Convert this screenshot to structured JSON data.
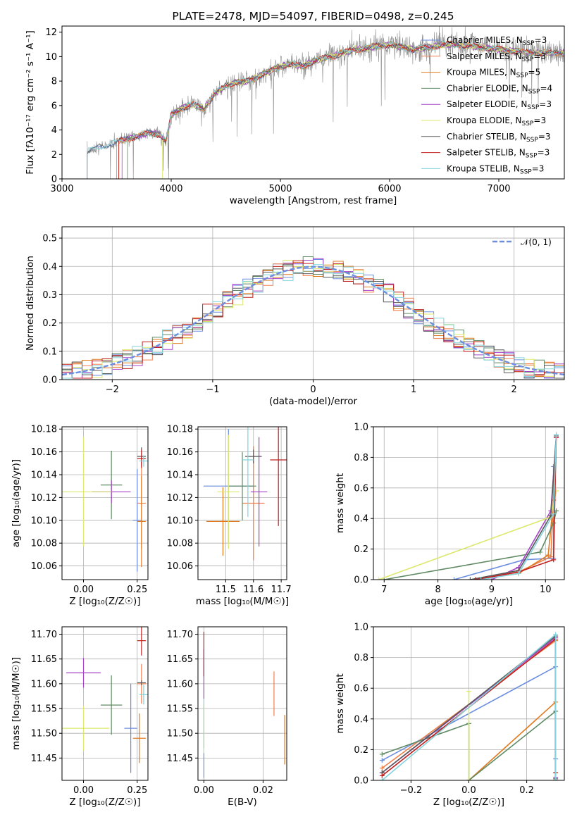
{
  "colors": [
    "#6c8ee0",
    "#f07e4a",
    "#e07b20",
    "#5f8a63",
    "#a642c6",
    "#dde86e",
    "#5a5a5a",
    "#c01f1f",
    "#82d3dc"
  ],
  "chart_data": [
    {
      "id": "spectrum",
      "type": "line",
      "title": "PLATE=2478, MJD=54097, FIBERID=0498, z=0.245",
      "xlabel": "wavelength [Angstrom, rest frame]",
      "ylabel": "Flux [fλ10⁻¹⁷ erg cm⁻² s⁻¹ A⁻¹]",
      "xlim": [
        3000,
        7600
      ],
      "ylim": [
        0,
        12.5
      ],
      "xticks": [
        "3000",
        "4000",
        "5000",
        "6000",
        "7000"
      ],
      "yticks": [
        "0",
        "2",
        "4",
        "6",
        "8",
        "10",
        "12"
      ],
      "legend_position": "top-right",
      "series": [
        {
          "name": "Chabrier MILES, N_SSP=3"
        },
        {
          "name": "Salpeter MILES, N_SSP=3"
        },
        {
          "name": "Kroupa MILES, N_SSP=5"
        },
        {
          "name": "Chabrier ELODIE, N_SSP=4"
        },
        {
          "name": "Salpeter ELODIE, N_SSP=3"
        },
        {
          "name": "Kroupa ELODIE, N_SSP=3"
        },
        {
          "name": "Chabrier STELIB, N_SSP=3"
        },
        {
          "name": "Salpeter STELIB, N_SSP=3"
        },
        {
          "name": "Kroupa STELIB, N_SSP=3"
        }
      ],
      "continuum_x": [
        3230,
        3300,
        3400,
        3500,
        3600,
        3700,
        3800,
        3900,
        3950,
        4000,
        4100,
        4200,
        4300,
        4400,
        4500,
        4600,
        4700,
        4800,
        4900,
        5000,
        5100,
        5200,
        5300,
        5400,
        5500,
        5600,
        5700,
        5800,
        5900,
        6000,
        6100,
        6200,
        6300,
        6400,
        6500,
        6600,
        6700,
        6800,
        6900,
        7000,
        7100,
        7200,
        7300
      ],
      "continuum_y": [
        2.2,
        2.5,
        2.7,
        3.0,
        3.3,
        3.5,
        3.8,
        3.6,
        3.0,
        5.2,
        5.8,
        6.1,
        5.7,
        7.0,
        7.6,
        7.9,
        8.0,
        8.4,
        8.8,
        9.2,
        9.4,
        9.2,
        9.6,
        9.9,
        10.1,
        10.4,
        10.6,
        10.7,
        10.9,
        11.0,
        10.8,
        10.6,
        10.7,
        10.8,
        11.0,
        11.0,
        10.9,
        10.8,
        10.7,
        10.6,
        10.5,
        10.4,
        10.3
      ],
      "model_start_x": [
        3230,
        3500,
        3520,
        3600,
        3550,
        3920,
        3230,
        3520,
        3230
      ]
    },
    {
      "id": "residuals",
      "type": "histogram",
      "xlabel": "(data-model)/error",
      "ylabel": "Normed distribution",
      "xlim": [
        -2.5,
        2.5
      ],
      "ylim": [
        0,
        0.54
      ],
      "xticks": [
        "−2",
        "−1",
        "0",
        "1",
        "2"
      ],
      "yticks": [
        "0.0",
        "0.1",
        "0.2",
        "0.3",
        "0.4",
        "0.5"
      ],
      "reference": {
        "name": "𝒩(0, 1)",
        "mean": 0,
        "sigma": 1,
        "color": "#6c8ee0"
      },
      "legend_position": "top-right",
      "bin_width": 0.1
    },
    {
      "id": "age_vs_Z",
      "type": "scatter",
      "xlabel": "Z [log₁₀(Z/Z☉)]",
      "ylabel": "age  [log₁₀(age/yr)]",
      "xlim": [
        -0.1,
        0.3
      ],
      "ylim": [
        10.048,
        10.182
      ],
      "xticks": [
        "0.00",
        "0.25"
      ],
      "yticks": [
        "10.06",
        "10.08",
        "10.10",
        "10.12",
        "10.14",
        "10.16",
        "10.18"
      ],
      "points": [
        {
          "x": 0.25,
          "y": 10.1,
          "xerr": 0.02,
          "yerr": 0.045,
          "c": 0
        },
        {
          "x": 0.27,
          "y": 10.115,
          "xerr": 0.02,
          "yerr": 0.04,
          "c": 1
        },
        {
          "x": 0.27,
          "y": 10.099,
          "xerr": 0.02,
          "yerr": 0.04,
          "c": 2
        },
        {
          "x": 0.13,
          "y": 10.131,
          "xerr": 0.05,
          "yerr": 0.03,
          "c": 3
        },
        {
          "x": 0.13,
          "y": 10.125,
          "xerr": 0.09,
          "yerr": 0.01,
          "c": 4
        },
        {
          "x": 0.0,
          "y": 10.125,
          "xerr": 0.13,
          "yerr": 0.048,
          "c": 5
        },
        {
          "x": 0.27,
          "y": 10.156,
          "xerr": 0.02,
          "yerr": 0.008,
          "c": 6
        },
        {
          "x": 0.27,
          "y": 10.154,
          "xerr": 0.02,
          "yerr": 0.008,
          "c": 7
        },
        {
          "x": 0.28,
          "y": 10.152,
          "xerr": 0.02,
          "yerr": 0.005,
          "c": 8
        }
      ]
    },
    {
      "id": "age_vs_mass",
      "type": "scatter",
      "xlabel": "mass [log₁₀(M/M☉)]",
      "ylabel": "",
      "xlim": [
        11.4,
        11.72
      ],
      "ylim": [
        10.048,
        10.182
      ],
      "xticks": [
        "11.5",
        "11.6",
        "11.7"
      ],
      "yticks": [
        "10.06",
        "10.08",
        "10.10",
        "10.12",
        "10.14",
        "10.16",
        "10.18"
      ],
      "points": [
        {
          "x": 11.51,
          "y": 10.13,
          "xerr": 0.09,
          "yerr": 0.05,
          "c": 0
        },
        {
          "x": 11.6,
          "y": 10.115,
          "xerr": 0.04,
          "yerr": 0.05,
          "c": 1
        },
        {
          "x": 11.49,
          "y": 10.099,
          "xerr": 0.06,
          "yerr": 0.03,
          "c": 2
        },
        {
          "x": 11.56,
          "y": 10.13,
          "xerr": 0.05,
          "yerr": 0.03,
          "c": 3
        },
        {
          "x": 11.62,
          "y": 10.125,
          "xerr": 0.03,
          "yerr": 0.048,
          "c": 4
        },
        {
          "x": 11.51,
          "y": 10.125,
          "xerr": 0.04,
          "yerr": 0.05,
          "c": 5
        },
        {
          "x": 11.6,
          "y": 10.156,
          "xerr": 0.03,
          "yerr": 0.006,
          "c": 6
        },
        {
          "x": 11.69,
          "y": 10.153,
          "xerr": 0.03,
          "yerr": 0.058,
          "c": 7
        },
        {
          "x": 11.58,
          "y": 10.153,
          "xerr": 0.02,
          "yerr": 0.05,
          "c": 8
        }
      ]
    },
    {
      "id": "weight_vs_age",
      "type": "line",
      "xlabel": "age  [log₁₀(age/yr)]",
      "ylabel": "mass weight",
      "xlim": [
        6.8,
        10.35
      ],
      "ylim": [
        0,
        1.0
      ],
      "xticks": [
        "7",
        "8",
        "9",
        "10"
      ],
      "yticks": [
        "0.0",
        "0.2",
        "0.4",
        "0.6",
        "0.8",
        "1.0"
      ],
      "series": [
        {
          "c": 0,
          "x": [
            8.3,
            9.6,
            10.15,
            10.15
          ],
          "y": [
            0.0,
            0.13,
            0.14,
            0.74
          ]
        },
        {
          "c": 1,
          "x": [
            8.7,
            9.5,
            10.1,
            10.2
          ],
          "y": [
            0.0,
            0.05,
            0.15,
            0.93
          ]
        },
        {
          "c": 2,
          "x": [
            8.7,
            9.5,
            10.05,
            10.15
          ],
          "y": [
            0.0,
            0.04,
            0.16,
            0.52
          ]
        },
        {
          "c": 3,
          "x": [
            7.0,
            9.9,
            10.15,
            10.2
          ],
          "y": [
            0.0,
            0.18,
            0.37,
            0.45
          ]
        },
        {
          "c": 4,
          "x": [
            9.0,
            9.5,
            10.1,
            10.2
          ],
          "y": [
            0.0,
            0.08,
            0.45,
            0.93
          ]
        },
        {
          "c": 5,
          "x": [
            6.9,
            10.1,
            10.2
          ],
          "y": [
            0.0,
            0.41,
            0.58
          ]
        },
        {
          "c": 6,
          "x": [
            8.6,
            9.5,
            10.1,
            10.2
          ],
          "y": [
            0.0,
            0.06,
            0.42,
            0.94
          ]
        },
        {
          "c": 7,
          "x": [
            8.7,
            9.5,
            10.15,
            10.2
          ],
          "y": [
            0.0,
            0.05,
            0.13,
            0.93
          ]
        },
        {
          "c": 8,
          "x": [
            8.8,
            9.5,
            10.15,
            10.2
          ],
          "y": [
            0.0,
            0.04,
            0.43,
            0.95
          ]
        }
      ]
    },
    {
      "id": "mass_vs_Z",
      "type": "scatter",
      "xlabel": "Z [log₁₀(Z/Z☉)]",
      "ylabel": "mass [log₁₀(M/M☉)]",
      "xlim": [
        -0.1,
        0.3
      ],
      "ylim": [
        11.405,
        11.715
      ],
      "xticks": [
        "0.00",
        "0.25"
      ],
      "yticks": [
        "11.45",
        "11.50",
        "11.55",
        "11.60",
        "11.65",
        "11.70"
      ],
      "points": [
        {
          "x": 0.22,
          "y": 11.51,
          "xerr": 0.03,
          "yerr": 0.09,
          "c": 0
        },
        {
          "x": 0.27,
          "y": 11.6,
          "xerr": 0.02,
          "yerr": 0.04,
          "c": 1
        },
        {
          "x": 0.26,
          "y": 11.49,
          "xerr": 0.03,
          "yerr": 0.05,
          "c": 2
        },
        {
          "x": 0.13,
          "y": 11.557,
          "xerr": 0.05,
          "yerr": 0.06,
          "c": 3
        },
        {
          "x": 0.0,
          "y": 11.622,
          "xerr": 0.08,
          "yerr": 0.03,
          "c": 4
        },
        {
          "x": 0.0,
          "y": 11.51,
          "xerr": 0.12,
          "yerr": 0.045,
          "c": 5
        },
        {
          "x": 0.27,
          "y": 11.602,
          "xerr": 0.02,
          "yerr": 0.005,
          "c": 6
        },
        {
          "x": 0.27,
          "y": 11.687,
          "xerr": 0.02,
          "yerr": 0.03,
          "c": 7
        },
        {
          "x": 0.28,
          "y": 11.578,
          "xerr": 0.02,
          "yerr": 0.02,
          "c": 8
        }
      ]
    },
    {
      "id": "mass_vs_EBV",
      "type": "scatter",
      "xlabel": "E(B-V)",
      "ylabel": "",
      "xlim": [
        -0.002,
        0.028
      ],
      "ylim": [
        11.405,
        11.715
      ],
      "xticks": [
        "0.00",
        "0.02"
      ],
      "yticks": [
        "11.45",
        "11.50",
        "11.55",
        "11.60",
        "11.65",
        "11.70"
      ],
      "points": [
        {
          "x": 0.0,
          "y": 11.44,
          "xerr": 0,
          "yerr": 0.03,
          "c": 0
        },
        {
          "x": 0.0273,
          "y": 11.487,
          "xerr": 0,
          "yerr": 0.05,
          "c": 2
        },
        {
          "x": 0.0237,
          "y": 11.58,
          "xerr": 0,
          "yerr": 0.045,
          "c": 1
        },
        {
          "x": 0.0,
          "y": 11.51,
          "xerr": 0,
          "yerr": 0.05,
          "c": 5
        },
        {
          "x": 0.0,
          "y": 11.52,
          "xerr": 0,
          "yerr": 0.05,
          "c": 8
        },
        {
          "x": 0.0,
          "y": 11.62,
          "xerr": 0,
          "yerr": 0.05,
          "c": 4
        },
        {
          "x": 0.0,
          "y": 11.66,
          "xerr": 0,
          "yerr": 0.045,
          "c": 7
        }
      ]
    },
    {
      "id": "weight_vs_Z",
      "type": "line",
      "xlabel": "Z [log₁₀(Z/Z☉)]",
      "ylabel": "mass weight",
      "xlim": [
        -0.33,
        0.33
      ],
      "ylim": [
        0,
        1.0
      ],
      "xticks": [
        "−0.2",
        "0.0",
        "0.2"
      ],
      "yticks": [
        "0.0",
        "0.2",
        "0.4",
        "0.6",
        "0.8",
        "1.0"
      ],
      "series": [
        {
          "c": 0,
          "x": [
            -0.3,
            0.3,
            0.3
          ],
          "y": [
            0.13,
            0.74,
            0.14
          ]
        },
        {
          "c": 1,
          "x": [
            -0.3,
            0.3,
            0.3
          ],
          "y": [
            0.08,
            0.91,
            0.0
          ]
        },
        {
          "c": 2,
          "x": [
            0.0,
            0.3,
            0.3
          ],
          "y": [
            0.0,
            0.51,
            0.0
          ]
        },
        {
          "c": 3,
          "x": [
            -0.3,
            0.0,
            0.0,
            0.3,
            0.3
          ],
          "y": [
            0.17,
            0.37,
            0.0,
            0.45,
            0.0
          ]
        },
        {
          "c": 4,
          "x": [
            -0.3,
            0.3,
            0.3
          ],
          "y": [
            0.05,
            0.93,
            0.02
          ]
        },
        {
          "c": 5,
          "x": [
            0.0,
            0.0
          ],
          "y": [
            0.0,
            0.58
          ]
        },
        {
          "c": 6,
          "x": [
            -0.3,
            0.3,
            0.3
          ],
          "y": [
            0.05,
            0.94,
            0.01
          ]
        },
        {
          "c": 7,
          "x": [
            -0.3,
            0.3,
            0.3
          ],
          "y": [
            0.03,
            0.92,
            0.05
          ]
        },
        {
          "c": 8,
          "x": [
            -0.3,
            0.3,
            0.3
          ],
          "y": [
            0.0,
            0.95,
            0.0
          ]
        }
      ]
    }
  ]
}
